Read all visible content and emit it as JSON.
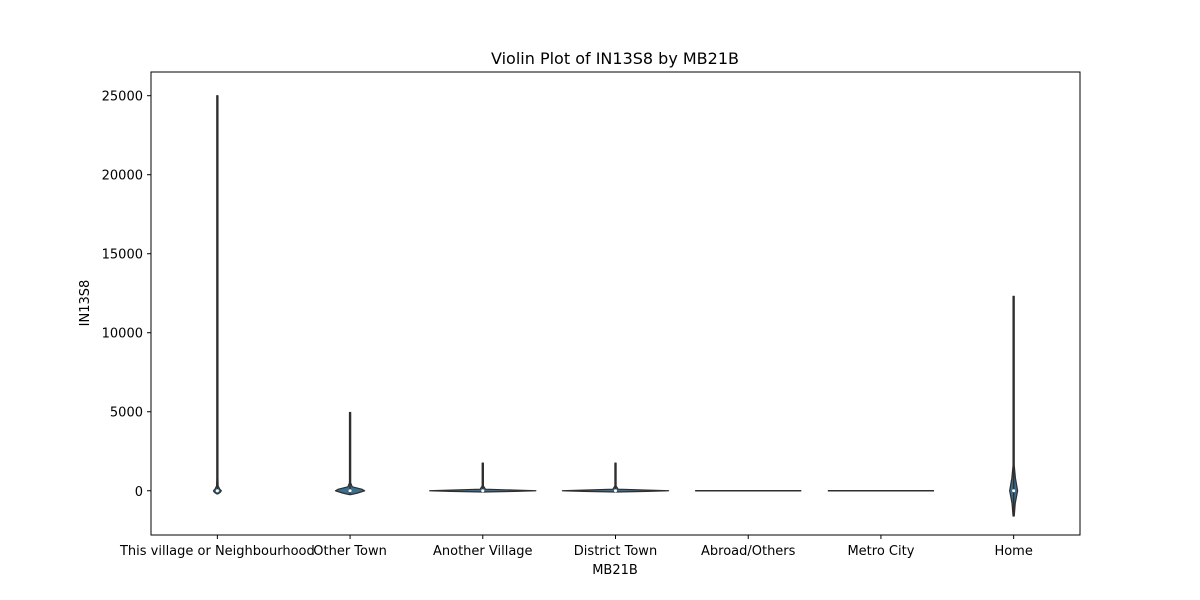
{
  "chart_data": {
    "type": "violin",
    "title": "Violin Plot of IN13S8 by MB21B",
    "xlabel": "MB21B",
    "ylabel": "IN13S8",
    "ylim": [
      -2800,
      26500
    ],
    "yticks": [
      0,
      5000,
      10000,
      15000,
      20000,
      25000
    ],
    "yticklabels": [
      "0",
      "5000",
      "10000",
      "15000",
      "20000",
      "25000"
    ],
    "grid": false,
    "legend": "none",
    "colors": {
      "violin_fill": "#3b6e8f",
      "violin_edge": "#2f2f2f",
      "axes": "#000000"
    },
    "categories": [
      "This village or Neighbourhood",
      "Other Town",
      "Another Village",
      "District Town",
      "Abroad/Others",
      "Metro City",
      "Home"
    ],
    "violins": [
      {
        "category": "This village or Neighbourhood",
        "min": 0,
        "max": 25000,
        "median": 0,
        "width": 0.06,
        "profile": [
          [
            -200,
            0
          ],
          [
            -100,
            0.7
          ],
          [
            0,
            1
          ],
          [
            100,
            0.6
          ],
          [
            300,
            0.2
          ],
          [
            800,
            0.03
          ],
          [
            25000,
            0.01
          ]
        ]
      },
      {
        "category": "Other Town",
        "min": -200,
        "max": 4950,
        "median": 0,
        "width": 0.22,
        "profile": [
          [
            -250,
            0
          ],
          [
            -150,
            0.5
          ],
          [
            0,
            1
          ],
          [
            100,
            0.8
          ],
          [
            250,
            0.15
          ],
          [
            500,
            0.04
          ],
          [
            4950,
            0.01
          ]
        ]
      },
      {
        "category": "Another Village",
        "min": -50,
        "max": 1750,
        "median": 0,
        "width": 0.8,
        "profile": [
          [
            -80,
            0
          ],
          [
            -40,
            0.6
          ],
          [
            0,
            1
          ],
          [
            40,
            0.6
          ],
          [
            100,
            0.05
          ],
          [
            300,
            0.01
          ],
          [
            1750,
            0.006
          ]
        ]
      },
      {
        "category": "District Town",
        "min": -50,
        "max": 1750,
        "median": 0,
        "width": 0.8,
        "profile": [
          [
            -80,
            0
          ],
          [
            -40,
            0.6
          ],
          [
            0,
            1
          ],
          [
            40,
            0.6
          ],
          [
            100,
            0.05
          ],
          [
            300,
            0.01
          ],
          [
            1750,
            0.006
          ]
        ]
      },
      {
        "category": "Abroad/Others",
        "min": 0,
        "max": 0,
        "median": 0,
        "width": 0.8,
        "flat": true
      },
      {
        "category": "Metro City",
        "min": 0,
        "max": 0,
        "median": 0,
        "width": 0.8,
        "flat": true
      },
      {
        "category": "Home",
        "min": -1600,
        "max": 12300,
        "median": 0,
        "width": 0.06,
        "profile": [
          [
            -1600,
            0
          ],
          [
            -800,
            0.4
          ],
          [
            0,
            1
          ],
          [
            800,
            0.45
          ],
          [
            1600,
            0.08
          ],
          [
            3000,
            0.02
          ],
          [
            12300,
            0.01
          ]
        ]
      }
    ]
  }
}
